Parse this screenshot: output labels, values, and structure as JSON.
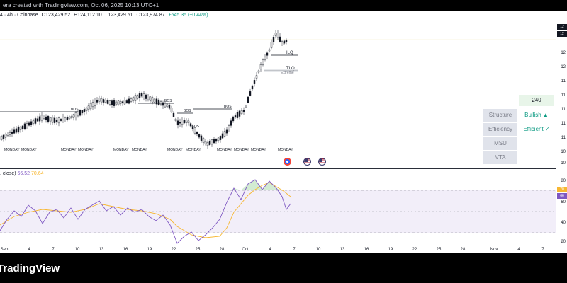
{
  "header": {
    "title_text": "era created with TradingView.com, Oct 06, 2025 10:13 UTC+1"
  },
  "legend": {
    "symbol_info": "4 · 4h · Coinbase",
    "open": "O123,429.52",
    "high": "H124,112.10",
    "low": "L123,429.51",
    "close": "C123,974.87",
    "change": "+545.35 (+0.44%)"
  },
  "chart": {
    "bos_labels": [
      "BOS",
      "BOS",
      "BOS",
      "BOS"
    ],
    "liquidity_labels": [
      "ILQ",
      "TLQ"
    ],
    "extreme_label": "Extreme",
    "ibos_label": "IBOS",
    "day_labels": [
      "MONDAY",
      "MONDAY",
      "MONDAY",
      "MONDAY",
      "MONDAY",
      "MONDAY",
      "MONDAY",
      "MONDAY",
      "MONDAY",
      "MONDAY",
      "MONDAY",
      "MONDAY"
    ]
  },
  "panel": {
    "timeframe": "240",
    "rows": [
      {
        "label": "Structure",
        "value": "Bullish ▲"
      },
      {
        "label": "Efficiency",
        "value": "Efficient ✓"
      },
      {
        "label": "MSU",
        "value": ""
      },
      {
        "label": "VTA",
        "value": ""
      }
    ]
  },
  "price_scale": {
    "tag_top": "12",
    "tag_mid": "12",
    "labels": [
      "12",
      "12",
      "11",
      "11",
      "11",
      "11",
      "11",
      "10",
      "10"
    ]
  },
  "indicator": {
    "name": ", close)",
    "rsi_value": "66.52",
    "ma_value": "70.64",
    "scale_labels": [
      "80",
      "70",
      "66",
      "60",
      "40",
      "20"
    ]
  },
  "time_axis": {
    "labels": [
      "Sep",
      "4",
      "7",
      "10",
      "13",
      "16",
      "19",
      "22",
      "25",
      "28",
      "Oct",
      "4",
      "7",
      "10",
      "13",
      "16",
      "19",
      "22",
      "25",
      "28",
      "Nov",
      "4",
      "7"
    ]
  },
  "footer": {
    "logo_text": "TradingView"
  }
}
